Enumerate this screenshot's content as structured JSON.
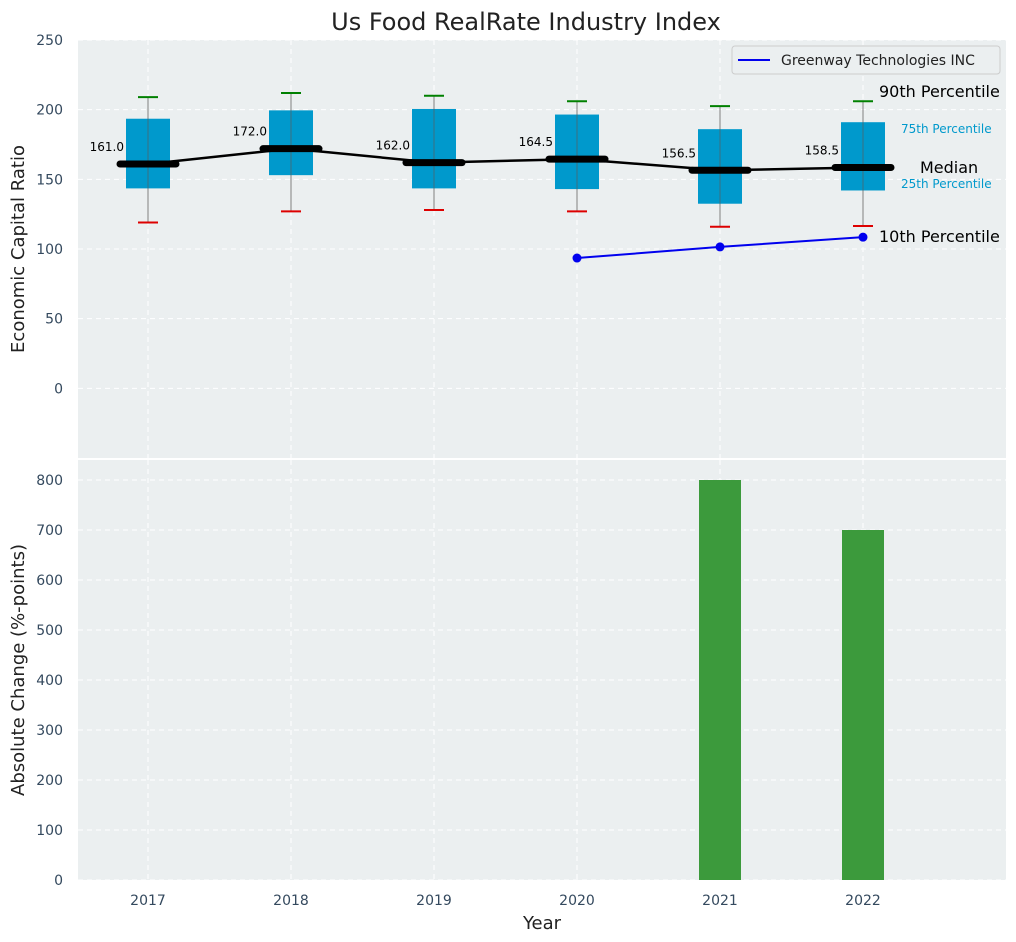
{
  "chart_data": [
    {
      "type": "box",
      "title": "Us Food RealRate Industry Index",
      "ylabel": "Economic Capital Ratio",
      "ylim": [
        -50,
        250
      ],
      "yticks": [
        0,
        50,
        100,
        150,
        200,
        250
      ],
      "grid": true,
      "categories": [
        "2017",
        "2018",
        "2019",
        "2020",
        "2021",
        "2022"
      ],
      "boxes": [
        {
          "year": "2017",
          "p10": 119,
          "p25": 143.5,
          "median": 161.0,
          "p75": 193.5,
          "p90": 209,
          "median_label": "161.0"
        },
        {
          "year": "2018",
          "p10": 127,
          "p25": 153,
          "median": 172.0,
          "p75": 199.5,
          "p90": 212,
          "median_label": "172.0"
        },
        {
          "year": "2019",
          "p10": 128,
          "p25": 143.5,
          "median": 162.0,
          "p75": 200.5,
          "p90": 210,
          "median_label": "162.0"
        },
        {
          "year": "2020",
          "p10": 127,
          "p25": 143,
          "median": 164.5,
          "p75": 196.5,
          "p90": 206,
          "median_label": "164.5"
        },
        {
          "year": "2021",
          "p10": 116,
          "p25": 132.5,
          "median": 156.5,
          "p75": 186,
          "p90": 202.5,
          "median_label": "156.5"
        },
        {
          "year": "2022",
          "p10": 116.5,
          "p25": 142,
          "median": 158.5,
          "p75": 191,
          "p90": 206,
          "median_label": "158.5"
        }
      ],
      "series": [
        {
          "name": "Greenway Technologies INC",
          "x": [
            "2020",
            "2021",
            "2022"
          ],
          "values": [
            93.5,
            101.5,
            108.5
          ],
          "color": "#0000ee"
        }
      ],
      "legend": {
        "placement": "top-right",
        "entries": [
          "Greenway Technologies INC"
        ]
      },
      "annotations": {
        "p90": "90th Percentile",
        "p75": "75th Percentile",
        "median": "Median",
        "p25": "25th Percentile",
        "p10": "10th Percentile"
      },
      "colors": {
        "box": "#0099cc",
        "median_line": "#000000",
        "upper_cap": "#008000",
        "lower_cap": "#dd0000",
        "background": "#ebeff0"
      }
    },
    {
      "type": "bar",
      "xlabel": "Year",
      "ylabel": "Absolute Change (%-points)",
      "ylim": [
        0,
        840
      ],
      "yticks": [
        0,
        100,
        200,
        300,
        400,
        500,
        600,
        700,
        800
      ],
      "grid": true,
      "categories": [
        "2017",
        "2018",
        "2019",
        "2020",
        "2021",
        "2022"
      ],
      "values": [
        0,
        0,
        0,
        0,
        800,
        700
      ],
      "color": "#3c9a3c"
    }
  ]
}
